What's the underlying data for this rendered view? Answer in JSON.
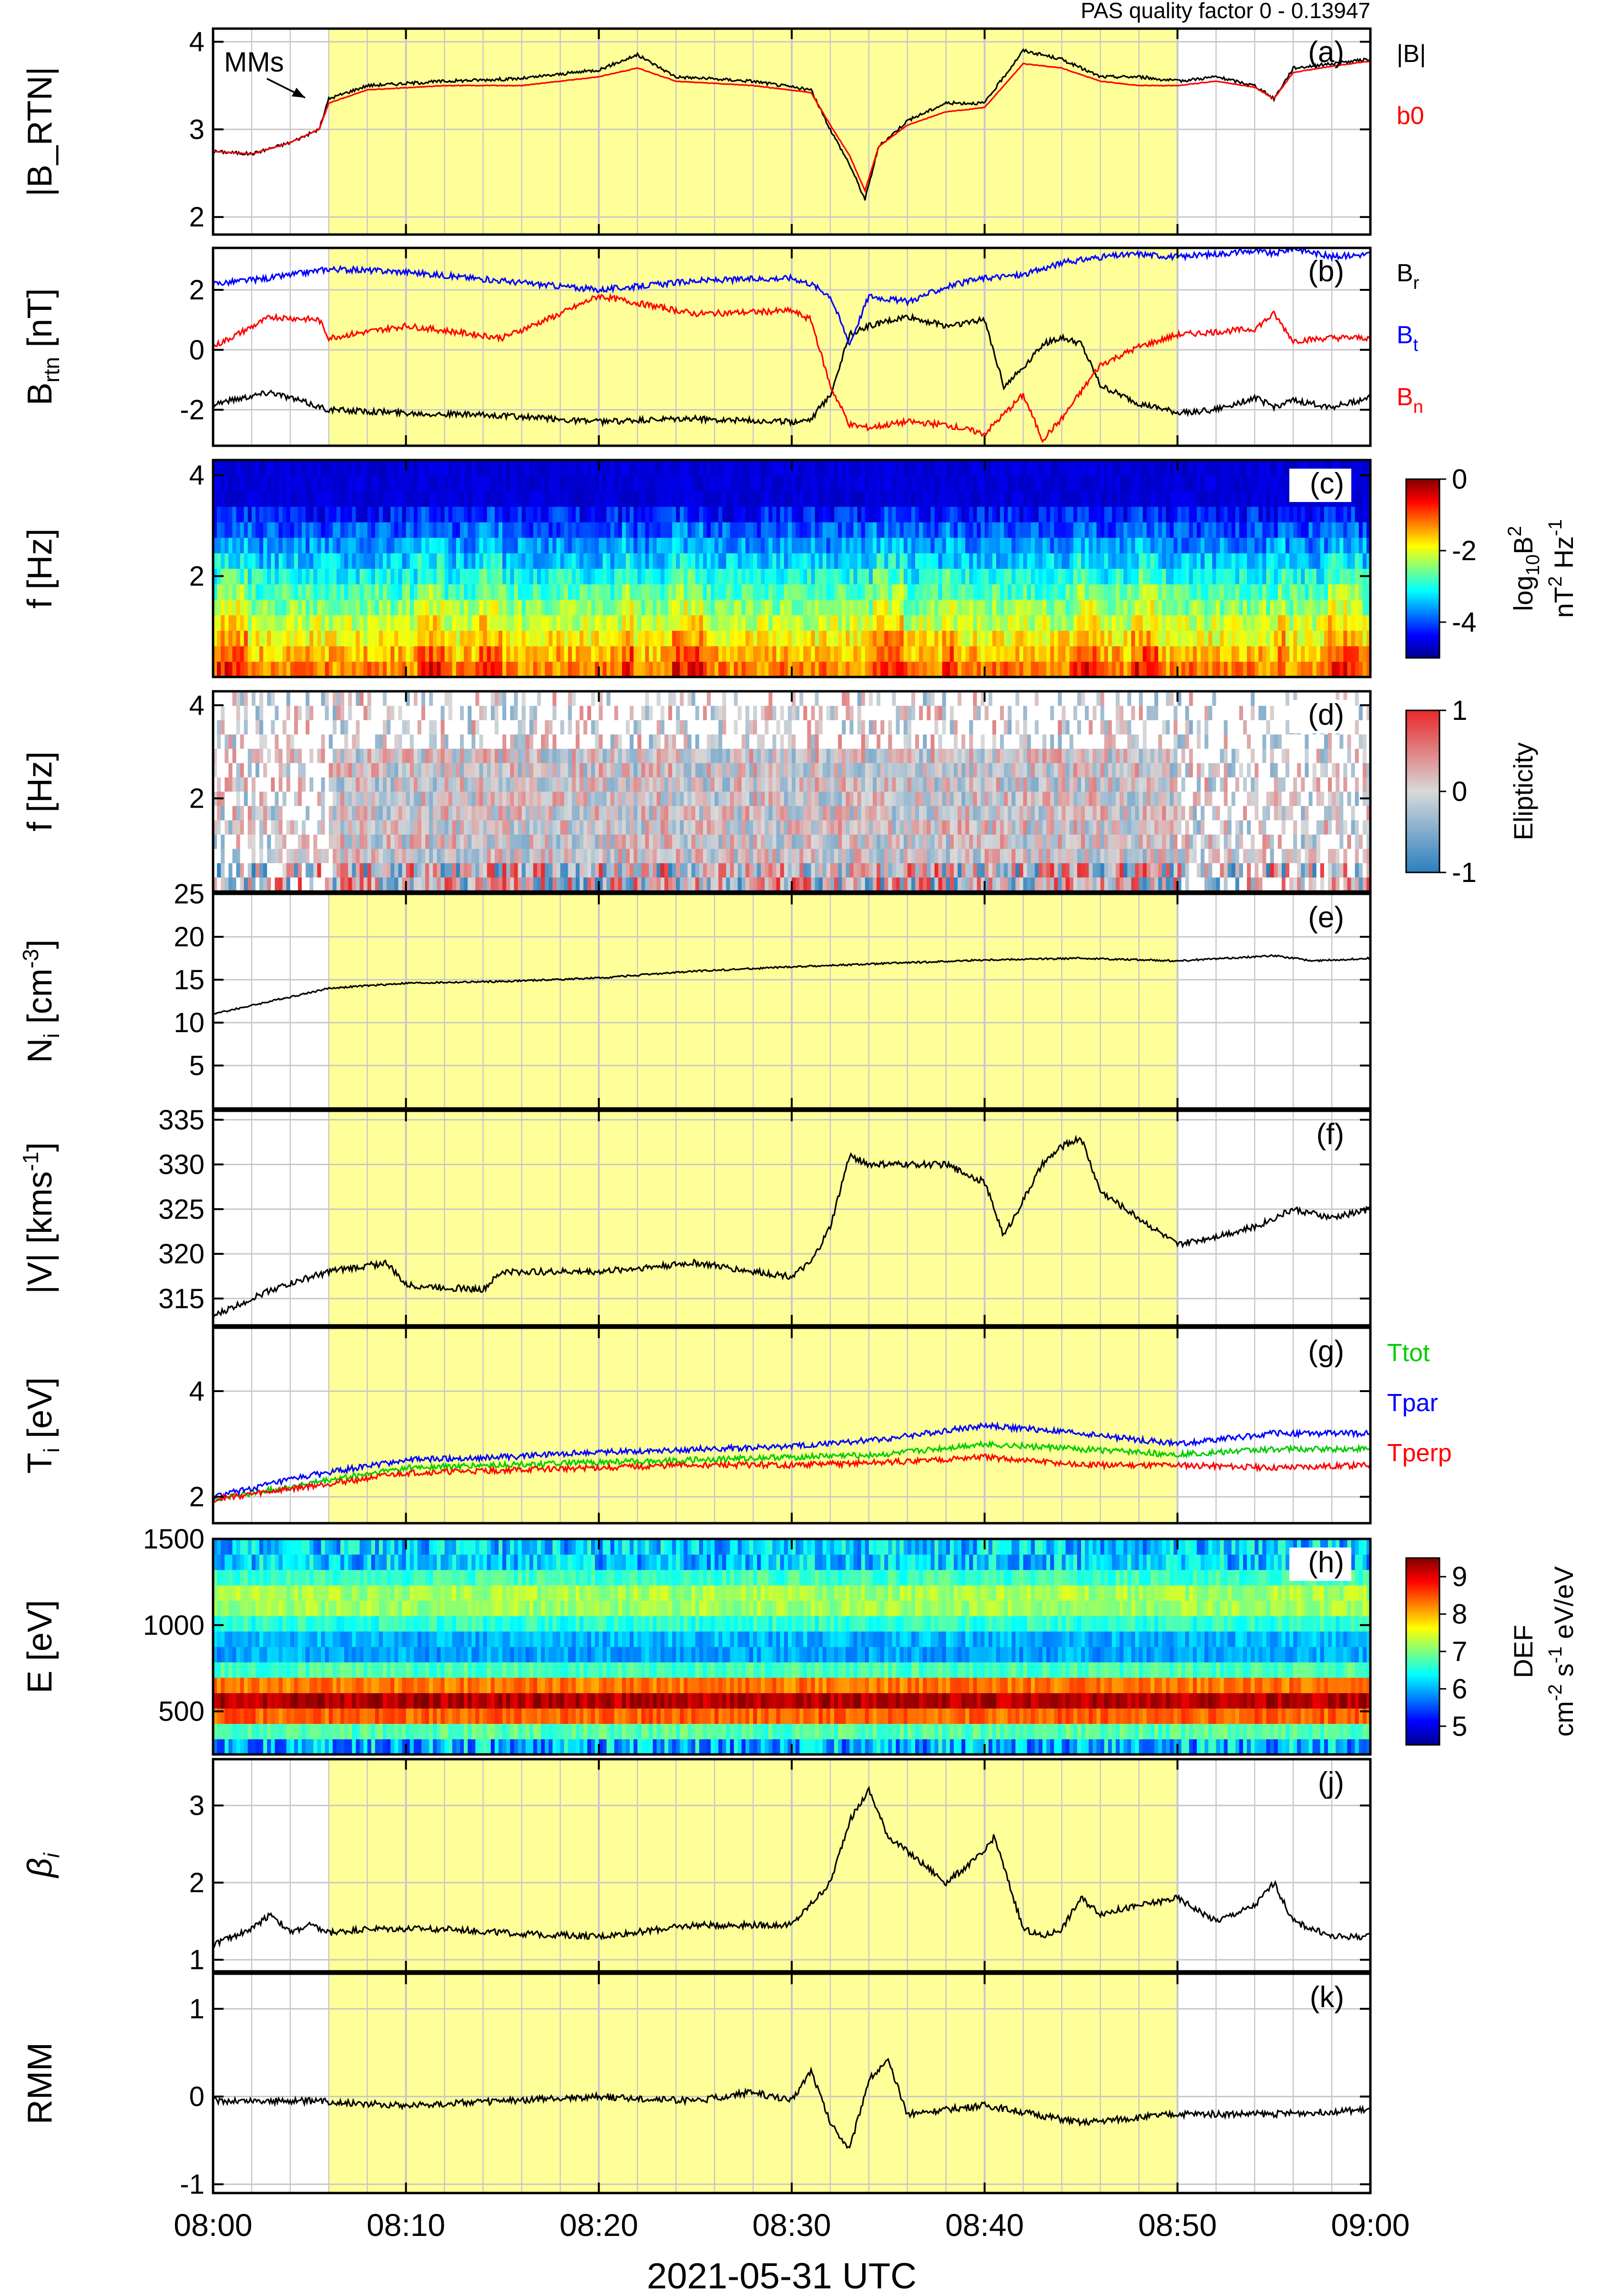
{
  "chart_data": {
    "type": "line",
    "quality_label": "PAS quality factor 0 - 0.13947",
    "xlabel": "2021-05-31 UTC",
    "xtick_labels": [
      "08:00",
      "08:10",
      "08:20",
      "08:30",
      "08:40",
      "08:50",
      "09:00"
    ],
    "xrange_minutes": [
      0,
      60
    ],
    "shaded_interval_minutes": [
      6,
      50
    ],
    "shade_color": "#ffff99",
    "panels": [
      {
        "id": "a",
        "label": "(a)",
        "ylabel": "|B_RTN|",
        "yticks": [
          "2",
          "3",
          "4"
        ],
        "ylim": [
          1.8,
          4.15
        ],
        "annotation": "MMs",
        "series": [
          {
            "name": "|B|",
            "color": "#000000",
            "x": [
              0,
              2,
              4,
              5.5,
              6,
              8,
              12,
              16,
              20,
              22,
              24,
              28,
              31,
              32,
              33,
              33.8,
              34.5,
              36,
              38,
              40,
              42,
              44,
              46,
              48,
              50,
              52,
              54,
              55,
              56,
              58,
              60
            ],
            "y": [
              2.75,
              2.72,
              2.85,
              3.0,
              3.35,
              3.5,
              3.55,
              3.58,
              3.68,
              3.85,
              3.6,
              3.55,
              3.45,
              3.0,
              2.6,
              2.2,
              2.8,
              3.1,
              3.3,
              3.3,
              3.9,
              3.8,
              3.6,
              3.6,
              3.55,
              3.6,
              3.5,
              3.35,
              3.7,
              3.75,
              3.8
            ]
          },
          {
            "name": "b0",
            "color": "#ff0000",
            "x": [
              0,
              2,
              4,
              5.5,
              6,
              8,
              12,
              16,
              20,
              22,
              24,
              28,
              31,
              32,
              33,
              33.8,
              34.5,
              36,
              38,
              40,
              42,
              44,
              46,
              48,
              50,
              52,
              54,
              55,
              56,
              58,
              60
            ],
            "y": [
              2.75,
              2.72,
              2.85,
              3.0,
              3.3,
              3.45,
              3.5,
              3.5,
              3.6,
              3.7,
              3.55,
              3.5,
              3.42,
              3.05,
              2.7,
              2.3,
              2.8,
              3.05,
              3.2,
              3.25,
              3.75,
              3.7,
              3.55,
              3.5,
              3.5,
              3.55,
              3.48,
              3.35,
              3.65,
              3.72,
              3.78
            ]
          }
        ]
      },
      {
        "id": "b",
        "label": "(b)",
        "ylabel": "B_rtn [nT]",
        "yticks": [
          "-2",
          "0",
          "2"
        ],
        "ylim": [
          -3.2,
          3.4
        ],
        "series": [
          {
            "name": "B_r",
            "color": "#000000",
            "x": [
              0,
              3,
              6,
              10,
              15,
              20,
              25,
              30,
              31,
              32,
              33,
              34,
              36,
              38,
              40,
              41,
              42,
              43,
              44,
              45,
              46,
              48,
              50,
              52,
              54,
              55,
              56,
              58,
              60
            ],
            "y": [
              -1.8,
              -1.4,
              -2.0,
              -2.1,
              -2.2,
              -2.4,
              -2.3,
              -2.4,
              -2.3,
              -1.5,
              0.5,
              0.8,
              1.1,
              0.8,
              1.0,
              -1.2,
              -0.6,
              0.2,
              0.4,
              0.2,
              -1.2,
              -1.8,
              -2.1,
              -2.0,
              -1.6,
              -1.9,
              -1.7,
              -1.9,
              -1.6
            ]
          },
          {
            "name": "B_t",
            "color": "#0000ff",
            "x": [
              0,
              3,
              6,
              10,
              15,
              20,
              25,
              30,
              31,
              32,
              33,
              34,
              36,
              38,
              40,
              42,
              44,
              46,
              48,
              50,
              52,
              54,
              55,
              56,
              58,
              60
            ],
            "y": [
              2.2,
              2.4,
              2.7,
              2.6,
              2.3,
              2.0,
              2.3,
              2.4,
              2.2,
              1.8,
              0.2,
              1.8,
              1.6,
              2.1,
              2.4,
              2.5,
              2.9,
              3.1,
              3.2,
              3.1,
              3.2,
              3.3,
              3.2,
              3.4,
              3.1,
              3.2
            ]
          },
          {
            "name": "B_n",
            "color": "#ff0000",
            "x": [
              0,
              3,
              5.5,
              6,
              8,
              10,
              15,
              18,
              20,
              25,
              30,
              31,
              32,
              33,
              34,
              36,
              38,
              40,
              42,
              43,
              44,
              46,
              48,
              50,
              52,
              54,
              55,
              56,
              58,
              60
            ],
            "y": [
              0.1,
              1.1,
              1.0,
              0.4,
              0.6,
              0.8,
              0.4,
              1.2,
              1.8,
              1.2,
              1.3,
              1.0,
              -1.2,
              -2.5,
              -2.6,
              -2.4,
              -2.5,
              -2.8,
              -1.5,
              -3.0,
              -2.3,
              -0.5,
              0.1,
              0.5,
              0.6,
              0.7,
              1.2,
              0.3,
              0.4,
              0.4
            ]
          }
        ]
      },
      {
        "id": "c",
        "label": "(c)",
        "ylabel": "f [Hz]",
        "yticks": [
          "2",
          "4"
        ],
        "ylim": [
          0,
          4.3
        ],
        "colorbar": {
          "ticks": [
            "0",
            "-2",
            "-4"
          ],
          "label_main": "log",
          "label_sub": "10",
          "label_sq": "B",
          "label_sq_sup": "2",
          "units": "nT",
          "units_sup1": "2",
          "units_mid": " Hz",
          "units_sup2": "-1",
          "range": [
            -5,
            0
          ]
        }
      },
      {
        "id": "d",
        "label": "(d)",
        "ylabel": "f [Hz]",
        "yticks": [
          "2",
          "4"
        ],
        "ylim": [
          0,
          4.3
        ],
        "colorbar": {
          "ticks": [
            "1",
            "0",
            "-1"
          ],
          "label": "Elipticity",
          "range": [
            -1,
            1
          ]
        }
      },
      {
        "id": "e",
        "label": "(e)",
        "ylabel": "N_i [cm^-3]",
        "yticks": [
          "5",
          "10",
          "15",
          "20",
          "25"
        ],
        "ylim": [
          0,
          25
        ],
        "series": [
          {
            "name": "N_i",
            "color": "#000000",
            "x": [
              0,
              3,
              6,
              10,
              15,
              20,
              25,
              30,
              35,
              40,
              45,
              50,
              55,
              57,
              60
            ],
            "y": [
              11,
              12.5,
              14,
              14.6,
              14.8,
              15.2,
              16,
              16.5,
              16.9,
              17.3,
              17.5,
              17.2,
              17.8,
              17.2,
              17.5
            ]
          }
        ]
      },
      {
        "id": "f",
        "label": "(f)",
        "ylabel": "|V| [kms^-1]",
        "yticks": [
          "315",
          "320",
          "325",
          "330",
          "335"
        ],
        "ylim": [
          312,
          336
        ],
        "series": [
          {
            "name": "|V|",
            "color": "#000000",
            "x": [
              0,
              3,
              6,
              9,
              10,
              14,
              15,
              20,
              25,
              28,
              30,
              31,
              32,
              33,
              34,
              36,
              38,
              40,
              41,
              42,
              43,
              44,
              45,
              46,
              48,
              50,
              52,
              54,
              56,
              58,
              60
            ],
            "y": [
              313,
              316,
              318,
              319,
              316.5,
              316,
              318,
              318,
              319,
              318,
              317.5,
              319,
              323,
              331,
              330,
              330,
              330,
              328,
              322,
              326,
              330,
              332,
              333,
              327,
              324,
              321,
              322,
              323,
              325,
              324,
              325
            ]
          }
        ]
      },
      {
        "id": "g",
        "label": "(g)",
        "ylabel": "T_i [eV]",
        "yticks": [
          "2",
          "4"
        ],
        "ylim": [
          1.5,
          5.2
        ],
        "series": [
          {
            "name": "Ttot",
            "color": "#00cc00",
            "x": [
              0,
              5,
              10,
              15,
              20,
              25,
              30,
              35,
              40,
              45,
              50,
              55,
              60
            ],
            "y": [
              1.95,
              2.25,
              2.55,
              2.6,
              2.65,
              2.7,
              2.75,
              2.8,
              3.0,
              2.9,
              2.8,
              2.9,
              2.9
            ]
          },
          {
            "name": "Tpar",
            "color": "#0000ff",
            "x": [
              0,
              5,
              10,
              15,
              20,
              25,
              30,
              35,
              40,
              45,
              50,
              55,
              60
            ],
            "y": [
              2.0,
              2.4,
              2.7,
              2.75,
              2.85,
              2.9,
              2.95,
              3.1,
              3.35,
              3.2,
              3.0,
              3.2,
              3.2
            ]
          },
          {
            "name": "Tperp",
            "color": "#ff0000",
            "x": [
              0,
              5,
              10,
              15,
              20,
              25,
              30,
              35,
              40,
              45,
              50,
              55,
              60
            ],
            "y": [
              1.95,
              2.2,
              2.45,
              2.5,
              2.55,
              2.6,
              2.6,
              2.65,
              2.75,
              2.6,
              2.6,
              2.55,
              2.6
            ]
          }
        ]
      },
      {
        "id": "h",
        "label": "(h)",
        "ylabel": "E [eV]",
        "yticks": [
          "500",
          "1000",
          "1500"
        ],
        "ylim": [
          250,
          1500
        ],
        "colorbar": {
          "ticks": [
            "9",
            "8",
            "7",
            "6",
            "5"
          ],
          "label": "DEF",
          "units_a": "cm",
          "units_a_sup": "-2",
          "units_b": " s",
          "units_b_sup": "-1",
          "units_c": " eV/eV",
          "range": [
            4.5,
            9.5
          ]
        }
      },
      {
        "id": "j",
        "label": "(j)",
        "ylabel": "β_i",
        "yticks": [
          "1",
          "2",
          "3"
        ],
        "ylim": [
          0.85,
          3.6
        ],
        "series": [
          {
            "name": "beta_i",
            "color": "#000000",
            "x": [
              0,
              2,
              3,
              4,
              5,
              6,
              8,
              12,
              15,
              20,
              25,
              28,
              30,
              32,
              33,
              34,
              35,
              36,
              37,
              38,
              40,
              40.5,
              41,
              42,
              43,
              44,
              45,
              46,
              48,
              50,
              52,
              54,
              55,
              56,
              58,
              60
            ],
            "y": [
              1.2,
              1.4,
              1.6,
              1.35,
              1.45,
              1.35,
              1.4,
              1.4,
              1.35,
              1.3,
              1.45,
              1.45,
              1.45,
              2.0,
              2.8,
              3.2,
              2.6,
              2.4,
              2.2,
              2.0,
              2.4,
              2.6,
              2.2,
              1.4,
              1.3,
              1.4,
              1.8,
              1.6,
              1.7,
              1.8,
              1.5,
              1.7,
              2.0,
              1.5,
              1.3,
              1.3
            ]
          }
        ]
      },
      {
        "id": "k",
        "label": "(k)",
        "ylabel": "RMM",
        "yticks": [
          "-1",
          "0",
          "1"
        ],
        "ylim": [
          -1.1,
          1.4
        ],
        "series": [
          {
            "name": "RMM",
            "color": "#000000",
            "x": [
              0,
              5,
              10,
              15,
              20,
              25,
              28,
              30,
              31,
              32,
              33,
              34,
              35,
              36,
              40,
              45,
              50,
              55,
              60
            ],
            "y": [
              -0.05,
              -0.05,
              -0.1,
              -0.05,
              0.0,
              -0.05,
              0.05,
              -0.05,
              0.3,
              -0.3,
              -0.6,
              0.2,
              0.4,
              -0.2,
              -0.1,
              -0.3,
              -0.2,
              -0.2,
              -0.15
            ]
          }
        ]
      }
    ]
  }
}
